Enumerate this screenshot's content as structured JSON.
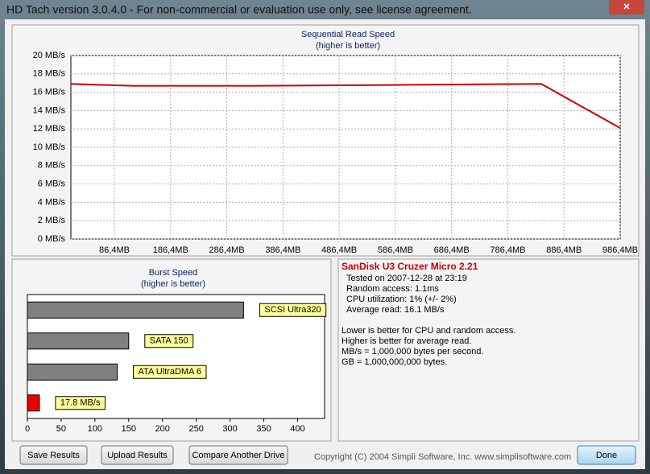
{
  "window": {
    "title": "HD Tach version 3.0.4.0  - For non-commercial or evaluation use only, see license agreement."
  },
  "chart_data": [
    {
      "type": "line",
      "title": "Sequential Read Speed",
      "subtitle": "(higher is better)",
      "x": [
        9,
        62,
        119,
        339,
        596,
        846,
        986.4
      ],
      "values": [
        16.9,
        16.8,
        16.7,
        16.7,
        16.8,
        16.9,
        12.1
      ],
      "color": "#cc0000",
      "xlim": [
        9,
        986.4
      ],
      "xticks": [
        {
          "value": 86.4,
          "label": "86,4MB"
        },
        {
          "value": 186.4,
          "label": "186,4MB"
        },
        {
          "value": 286.4,
          "label": "286,4MB"
        },
        {
          "value": 386.4,
          "label": "386,4MB"
        },
        {
          "value": 486.4,
          "label": "486,4MB"
        },
        {
          "value": 586.4,
          "label": "586,4MB"
        },
        {
          "value": 686.4,
          "label": "686,4MB"
        },
        {
          "value": 786.4,
          "label": "786,4MB"
        },
        {
          "value": 886.4,
          "label": "886,4MB"
        },
        {
          "value": 986.4,
          "label": "986,4MB"
        }
      ],
      "ylim": [
        0,
        20
      ],
      "yticks": [
        {
          "value": 0,
          "label": "0 MB/s"
        },
        {
          "value": 2,
          "label": "2 MB/s"
        },
        {
          "value": 4,
          "label": "4 MB/s"
        },
        {
          "value": 6,
          "label": "6 MB/s"
        },
        {
          "value": 8,
          "label": "8 MB/s"
        },
        {
          "value": 10,
          "label": "10 MB/s"
        },
        {
          "value": 12,
          "label": "12 MB/s"
        },
        {
          "value": 14,
          "label": "14 MB/s"
        },
        {
          "value": 16,
          "label": "16 MB/s"
        },
        {
          "value": 18,
          "label": "18 MB/s"
        },
        {
          "value": 20,
          "label": "20 MB/s"
        }
      ],
      "grid": true
    },
    {
      "type": "hbar",
      "title": "Burst Speed",
      "subtitle": "(higher is better)",
      "categories": [
        "SCSI Ultra320",
        "SATA 150",
        "ATA UltraDMA 6",
        null
      ],
      "values": [
        320,
        150,
        133,
        17.8
      ],
      "value_labels": [
        null,
        null,
        null,
        "17.8 MB/s"
      ],
      "colors": [
        "#808080",
        "#808080",
        "#808080",
        "#ee0000"
      ],
      "xlim": [
        0,
        440
      ],
      "xticks": [
        0,
        50,
        100,
        150,
        200,
        250,
        300,
        350,
        400
      ]
    }
  ],
  "info": {
    "title": "SanDisk U3 Cruzer Micro 2.21",
    "lines": [
      "Tested on 2007-12-28 at 23:19",
      "Random access: 1.1ms",
      "CPU utilization: 1% (+/- 2%)",
      "Average read: 16.1 MB/s"
    ],
    "notes": [
      "Lower is better for CPU and random access.",
      "Higher is better for average read.",
      "MB/s = 1,000,000 bytes per second.",
      "GB = 1,000,000,000 bytes."
    ]
  },
  "buttons": [
    "Save Results",
    "Upload Results",
    "Compare Another Drive",
    "Done"
  ],
  "copyright": "Copyright (C) 2004 Simpli Software, Inc. www.simplisoftware.com"
}
